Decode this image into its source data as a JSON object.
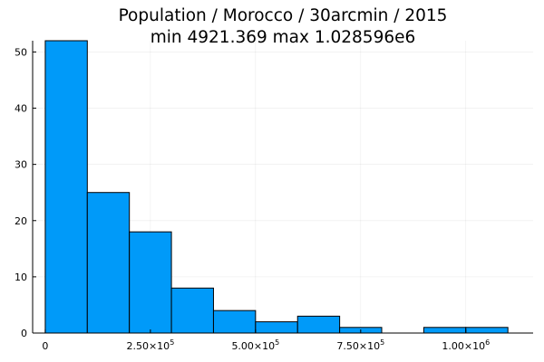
{
  "chart_data": {
    "type": "bar",
    "title": "Population / Morocco / 30arcmin / 2015",
    "subtitle": "min 4921.369  max 1.028596e6",
    "xlabel": "",
    "ylabel": "",
    "bin_width": 100000,
    "bins": [
      {
        "start": 0,
        "end": 100000,
        "count": 52
      },
      {
        "start": 100000,
        "end": 200000,
        "count": 25
      },
      {
        "start": 200000,
        "end": 300000,
        "count": 18
      },
      {
        "start": 300000,
        "end": 400000,
        "count": 8
      },
      {
        "start": 400000,
        "end": 500000,
        "count": 4
      },
      {
        "start": 500000,
        "end": 600000,
        "count": 2
      },
      {
        "start": 600000,
        "end": 700000,
        "count": 3
      },
      {
        "start": 700000,
        "end": 800000,
        "count": 1
      },
      {
        "start": 800000,
        "end": 900000,
        "count": 0
      },
      {
        "start": 900000,
        "end": 1000000,
        "count": 1
      },
      {
        "start": 1000000,
        "end": 1100000,
        "count": 1
      }
    ],
    "xlim": [
      -30000,
      1160000
    ],
    "ylim": [
      0,
      52
    ],
    "x_ticks": [
      {
        "value": 0,
        "mantissa": "0",
        "exponent": ""
      },
      {
        "value": 250000,
        "mantissa": "2.50×10",
        "exponent": "5"
      },
      {
        "value": 500000,
        "mantissa": "5.00×10",
        "exponent": "5"
      },
      {
        "value": 750000,
        "mantissa": "7.50×10",
        "exponent": "5"
      },
      {
        "value": 1000000,
        "mantissa": "1.00×10",
        "exponent": "6"
      }
    ],
    "y_ticks": [
      0,
      10,
      20,
      30,
      40,
      50
    ],
    "grid": true,
    "legend": "none",
    "bar_color": "#009af9"
  }
}
